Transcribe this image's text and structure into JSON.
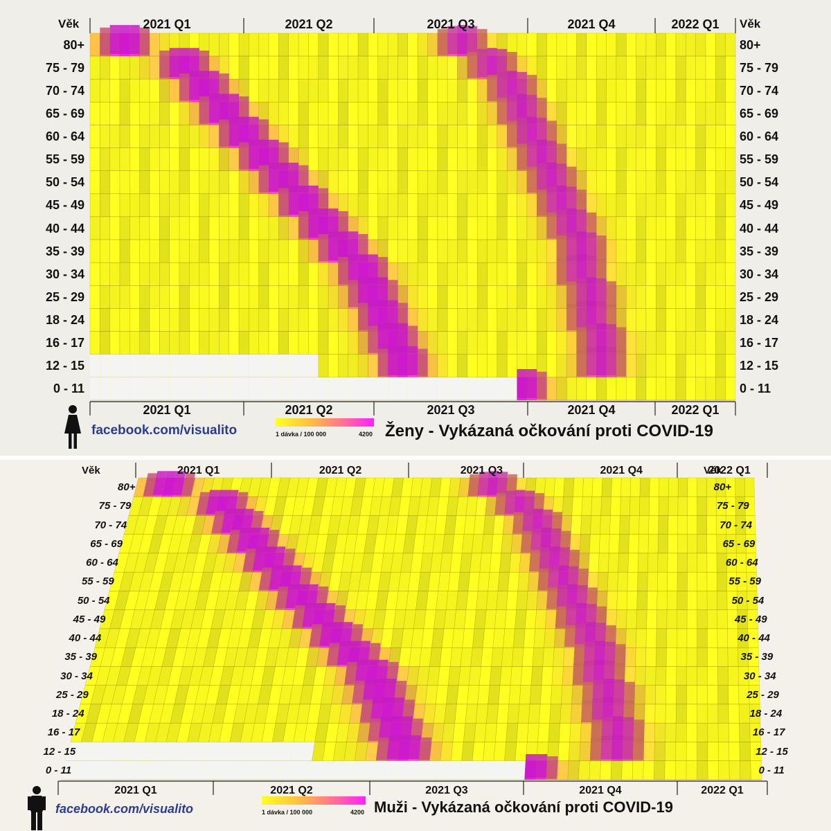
{
  "colors": {
    "low": "#ffff20",
    "mid": "#ff8f6a",
    "high": "#ff20ff",
    "empty": "#f4f4f2"
  },
  "icons": {
    "female": "woman-icon",
    "male": "man-icon"
  },
  "chart_data": [
    {
      "type": "heatmap",
      "title": "Ženy - Vykázaná očkování proti COVID-19",
      "axis_label": "Věk",
      "source": "facebook.com/visualito",
      "quarters": [
        "2021 Q1",
        "2021 Q2",
        "2021 Q3",
        "2021 Q4",
        "2022 Q1"
      ],
      "age_groups": [
        "80+",
        "75 - 79",
        "70 - 74",
        "65 - 69",
        "60 - 64",
        "55 - 59",
        "50 - 54",
        "45 - 49",
        "40 - 44",
        "35 - 39",
        "30 - 34",
        "25 - 29",
        "18 - 24",
        "16 - 17",
        "12 - 15",
        "0 - 11"
      ],
      "legend": {
        "min_label": "1 dávka / 100 000",
        "max_label": "4200",
        "range": [
          1,
          4200
        ]
      },
      "peak_week": [
        3,
        9,
        11,
        13,
        15,
        17,
        19,
        21,
        23,
        25,
        27,
        28,
        29,
        30,
        31,
        43
      ],
      "booster_week": [
        37,
        40,
        42,
        43,
        44,
        45,
        46,
        47,
        48,
        49,
        49,
        50,
        50,
        51,
        51,
        null
      ],
      "start_week": [
        0,
        0,
        0,
        0,
        0,
        0,
        0,
        0,
        0,
        0,
        0,
        0,
        0,
        0,
        23,
        43
      ]
    },
    {
      "type": "heatmap",
      "title": "Muži - Vykázaná očkování proti COVID-19",
      "axis_label": "Věk",
      "source": "facebook.com/visualito",
      "quarters": [
        "2021 Q1",
        "2021 Q2",
        "2021 Q3",
        "2021 Q4",
        "2022 Q1"
      ],
      "age_groups": [
        "80+",
        "75 - 79",
        "70 - 74",
        "65 - 69",
        "60 - 64",
        "55 - 59",
        "50 - 54",
        "45 - 49",
        "40 - 44",
        "35 - 39",
        "30 - 34",
        "25 - 29",
        "18 - 24",
        "16 - 17",
        "12 - 15",
        "0 - 11"
      ],
      "legend": {
        "min_label": "1 dávka / 100 000",
        "max_label": "4200",
        "range": [
          1,
          4200
        ]
      },
      "peak_week": [
        3,
        9,
        11,
        13,
        15,
        17,
        19,
        21,
        23,
        25,
        27,
        28,
        29,
        30,
        31,
        43
      ],
      "booster_week": [
        37,
        40,
        42,
        43,
        44,
        45,
        46,
        47,
        48,
        49,
        49,
        50,
        50,
        51,
        51,
        null
      ],
      "start_week": [
        0,
        0,
        0,
        0,
        0,
        0,
        0,
        0,
        0,
        0,
        0,
        0,
        0,
        0,
        23,
        43
      ]
    }
  ]
}
